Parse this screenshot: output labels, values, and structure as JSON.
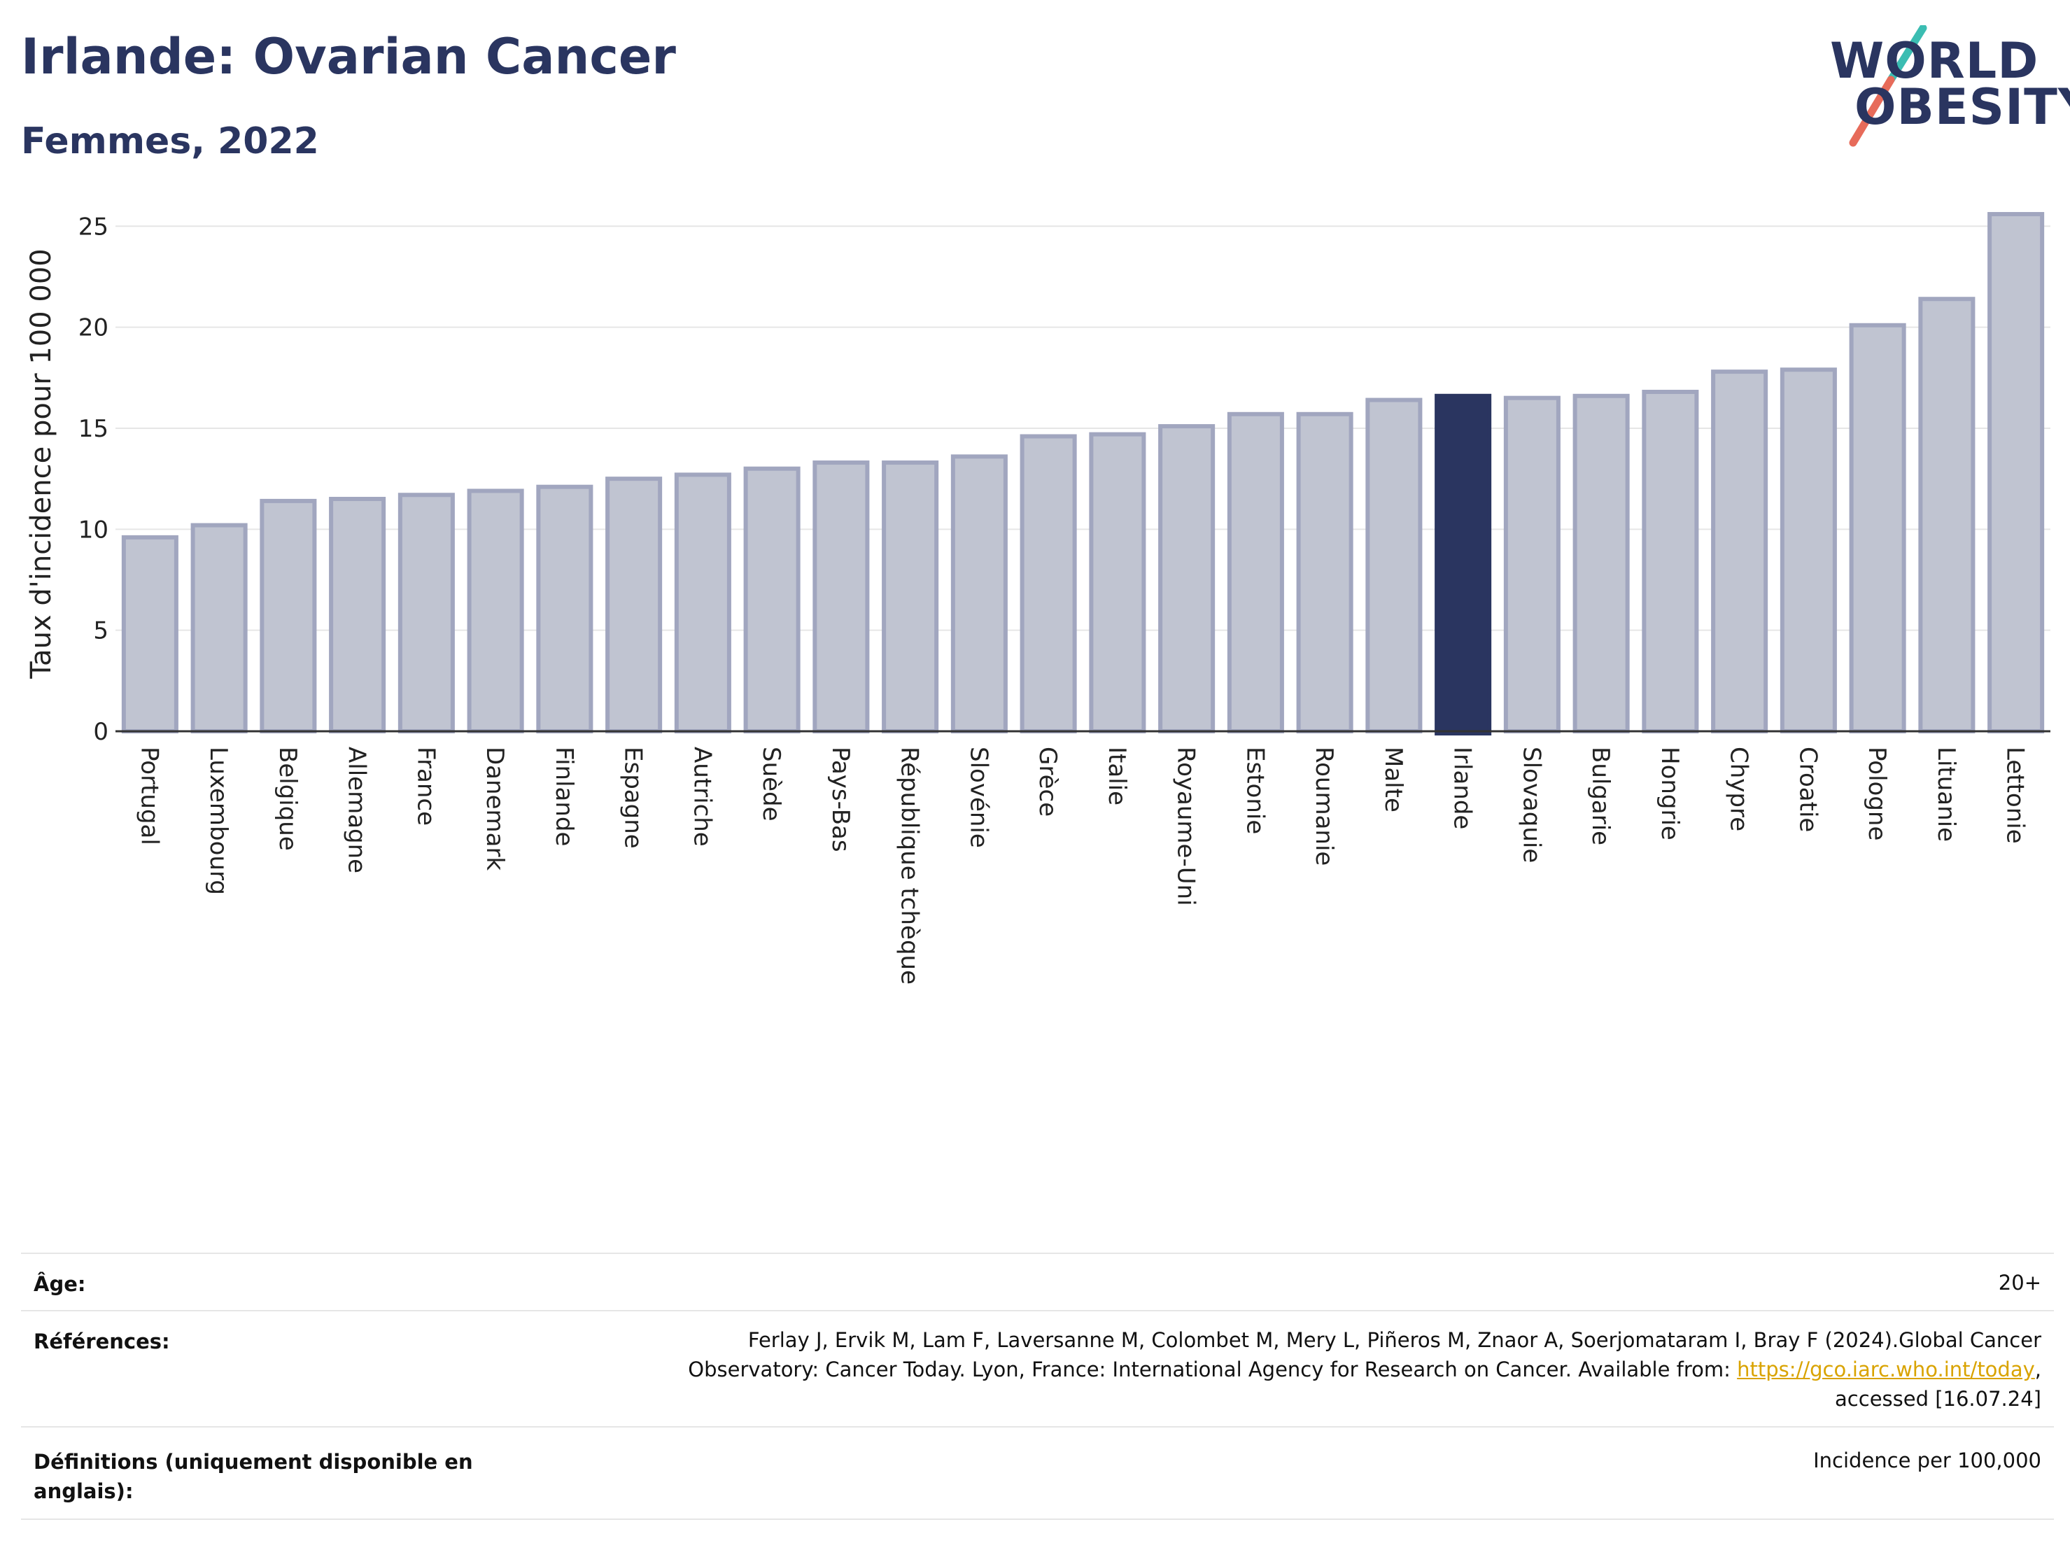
{
  "header": {
    "title": "Irlande: Ovarian Cancer",
    "subtitle": "Femmes, 2022"
  },
  "logo": {
    "line1": "WORLD",
    "line2": "OBESITY",
    "colors": {
      "text": "#2a3560",
      "slash_top": "#3bbdb2",
      "slash_bottom": "#e76b5a"
    }
  },
  "chart_data": {
    "type": "bar",
    "ylabel": "Taux d'incidence pour 100 000",
    "ylim": [
      0,
      26.5
    ],
    "yticks": [
      0,
      5,
      10,
      15,
      20,
      25
    ],
    "grid": true,
    "highlight": "Irlande",
    "colors": {
      "bar": "#c0c4d1",
      "bar_edge": "#a1a6bf",
      "highlight": "#2a3560"
    },
    "categories": [
      "Portugal",
      "Luxembourg",
      "Belgique",
      "Allemagne",
      "France",
      "Danemark",
      "Finlande",
      "Espagne",
      "Autriche",
      "Suède",
      "Pays-Bas",
      "République tchèque",
      "Slovénie",
      "Grèce",
      "Italie",
      "Royaume-Uni",
      "Estonie",
      "Roumanie",
      "Malte",
      "Irlande",
      "Slovaquie",
      "Bulgarie",
      "Hongrie",
      "Chypre",
      "Croatie",
      "Pologne",
      "Lituanie",
      "Lettonie"
    ],
    "values": [
      9.6,
      10.2,
      11.4,
      11.5,
      11.7,
      11.9,
      12.1,
      12.5,
      12.7,
      13.0,
      13.3,
      13.3,
      13.6,
      14.6,
      14.7,
      15.1,
      15.7,
      15.7,
      16.4,
      16.6,
      16.5,
      16.6,
      16.8,
      17.8,
      17.9,
      20.1,
      21.4,
      25.6
    ]
  },
  "footer": {
    "age_label": "Âge:",
    "age_value": "20+",
    "ref_label": "Références:",
    "ref_text1": "Ferlay J, Ervik M, Lam F, Laversanne M, Colombet M, Mery L, Piñeros M, Znaor A, Soerjomataram I, Bray F (2024).Global Cancer",
    "ref_text2_pre": "Observatory: Cancer Today. Lyon, France: International Agency for Research on Cancer. Available from: ",
    "ref_link": "https://gco.iarc.who.int/today",
    "ref_text2_post": ",",
    "ref_text3": "accessed [16.07.24]",
    "def_label_line1": "Définitions (uniquement disponible en",
    "def_label_line2": "anglais):",
    "def_value": "Incidence per 100,000"
  }
}
